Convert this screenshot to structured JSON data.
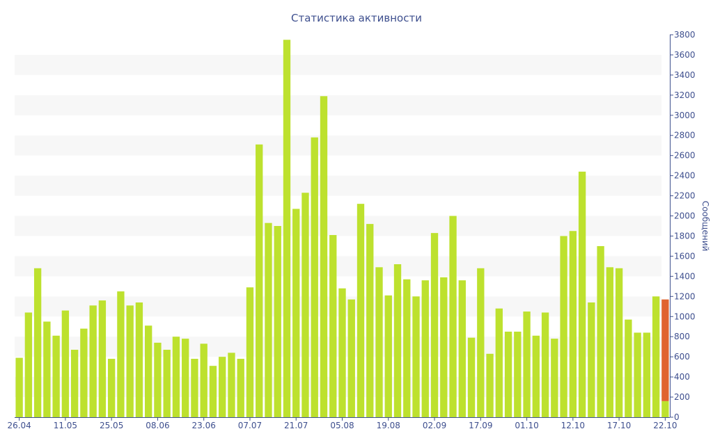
{
  "chart_data": {
    "type": "bar",
    "title": "Статистика активности",
    "xlabel": "",
    "ylabel": "Сообщений",
    "ylim": [
      0,
      3800
    ],
    "y_axis_position": "right",
    "grid": "alternating horizontal bands",
    "legend": "none",
    "y_ticks": [
      "0",
      "200",
      "400",
      "600",
      "800",
      "1000",
      "1200",
      "1400",
      "1600",
      "1800",
      "2000",
      "2200",
      "2400",
      "2600",
      "2800",
      "3000",
      "3200",
      "3400",
      "3600",
      "3800"
    ],
    "x_tick_labels": [
      {
        "label": "26.04",
        "index": 0
      },
      {
        "label": "11.05",
        "index": 5
      },
      {
        "label": "25.05",
        "index": 10
      },
      {
        "label": "08.06",
        "index": 15
      },
      {
        "label": "23.06",
        "index": 20
      },
      {
        "label": "07.07",
        "index": 25
      },
      {
        "label": "21.07",
        "index": 30
      },
      {
        "label": "05.08",
        "index": 35
      },
      {
        "label": "19.08",
        "index": 40
      },
      {
        "label": "02.09",
        "index": 45
      },
      {
        "label": "17.09",
        "index": 50
      },
      {
        "label": "01.10",
        "index": 55
      },
      {
        "label": "12.10",
        "index": 60
      },
      {
        "label": "17.10",
        "index": 65
      },
      {
        "label": "22.10",
        "index": 70
      }
    ],
    "values": [
      590,
      1040,
      1480,
      950,
      810,
      1060,
      670,
      880,
      1110,
      1160,
      580,
      1250,
      1110,
      1140,
      910,
      740,
      670,
      800,
      780,
      580,
      730,
      510,
      600,
      640,
      580,
      1290,
      2710,
      1930,
      1900,
      3750,
      2070,
      2230,
      2780,
      3190,
      1810,
      1280,
      1170,
      2120,
      1920,
      1490,
      1210,
      1520,
      1370,
      1200,
      1360,
      1830,
      1390,
      2000,
      1360,
      790,
      1480,
      630,
      1080,
      850,
      850,
      1050,
      810,
      1040,
      780,
      1800,
      1850,
      2440,
      1140,
      1700,
      1490,
      1480,
      970,
      840,
      840,
      1200,
      1170
    ],
    "highlight_last": {
      "value": 1170,
      "base_value": 160
    },
    "colors": {
      "bar": "#bde12e",
      "highlight": "#e0632f",
      "text": "#3e4f8e",
      "axis": "#3e4f8e",
      "band": "#f7f7f7"
    }
  }
}
